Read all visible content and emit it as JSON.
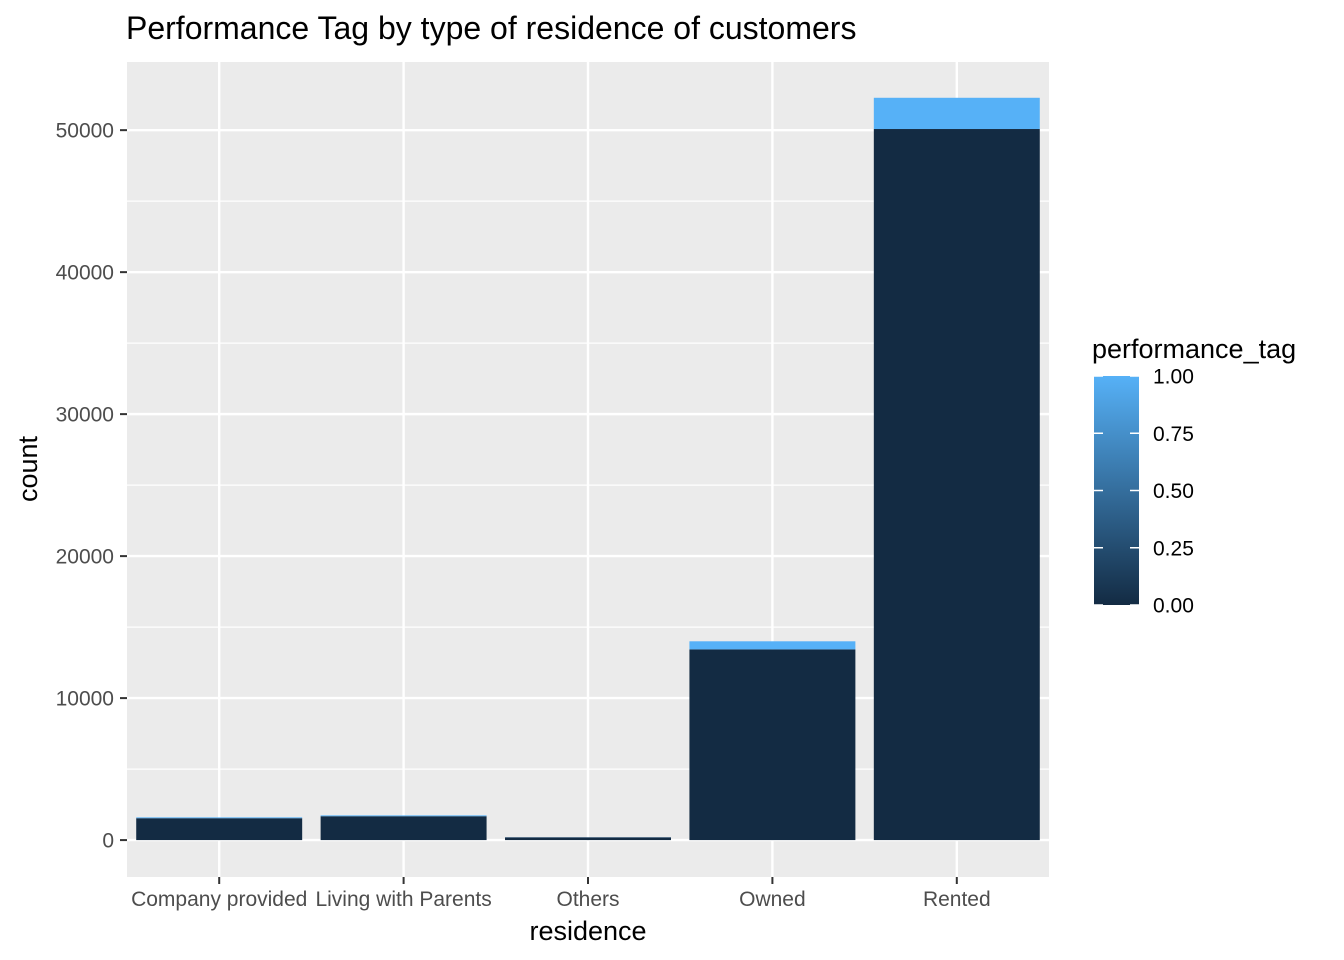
{
  "chart_data": {
    "type": "bar",
    "stacked": true,
    "title": "Performance Tag by type of residence of customers",
    "xlabel": "residence",
    "ylabel": "count",
    "categories": [
      "Company provided",
      "Living with Parents",
      "Others",
      "Owned",
      "Rented"
    ],
    "series": [
      {
        "key": "tag_0",
        "values": [
          1540,
          1680,
          190,
          13430,
          50080
        ],
        "color": "#132B43"
      },
      {
        "key": "tag_1",
        "values": [
          60,
          60,
          8,
          570,
          2200
        ],
        "color": "#56B1F7"
      }
    ],
    "ylim": [
      -2600,
      54800
    ],
    "yticks": [
      0,
      10000,
      20000,
      30000,
      40000,
      50000
    ],
    "ytick_labels": [
      "0",
      "10000",
      "20000",
      "30000",
      "40000",
      "50000"
    ],
    "grid": true,
    "panel_background": "#EBEBEB",
    "legend": {
      "title": "performance_tag",
      "type": "colorbar",
      "position": "right",
      "range": [
        0,
        1
      ],
      "breaks": [
        1.0,
        0.75,
        0.5,
        0.25,
        0.0
      ],
      "labels": [
        "1.00",
        "0.75",
        "0.50",
        "0.25",
        "0.00"
      ],
      "low_color": "#132B43",
      "high_color": "#56B1F7"
    }
  }
}
